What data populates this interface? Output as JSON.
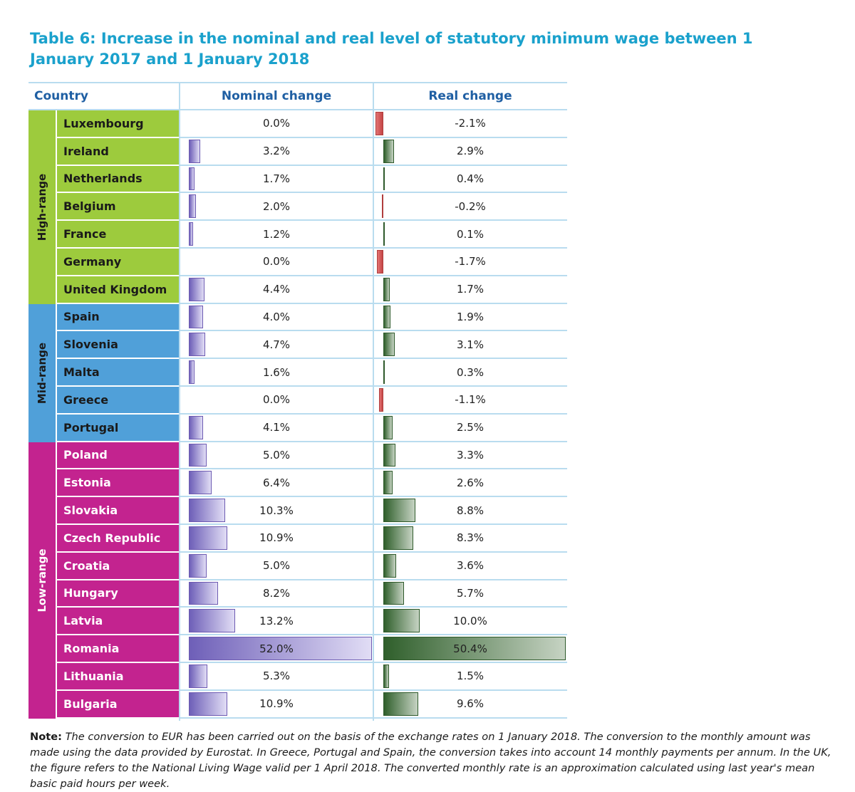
{
  "title": "Table 6: Increase in the nominal and real level of statutory minimum wage between 1 January 2017 and 1 January 2018",
  "columns": {
    "country": "Country",
    "nominal": "Nominal change",
    "real": "Real change"
  },
  "colors": {
    "high_range": "#9dcb3d",
    "mid_range": "#50a0d9",
    "low_range": "#c3238f",
    "nominal_bar": "#6e5fb8",
    "real_bar_positive": "#2f5f2b",
    "real_bar_negative": "#d9534f",
    "title": "#1aa1cc",
    "header": "#1f5fa3"
  },
  "groups": [
    {
      "label": "High-range",
      "color": "#9dcb3d",
      "text_color": "#1a1a1a",
      "rows": [
        {
          "country": "Luxembourg",
          "nominal": 0.0,
          "nominal_text": "0.0%",
          "real": -2.1,
          "real_text": "-2.1%"
        },
        {
          "country": "Ireland",
          "nominal": 3.2,
          "nominal_text": "3.2%",
          "real": 2.9,
          "real_text": "2.9%"
        },
        {
          "country": "Netherlands",
          "nominal": 1.7,
          "nominal_text": "1.7%",
          "real": 0.4,
          "real_text": "0.4%"
        },
        {
          "country": "Belgium",
          "nominal": 2.0,
          "nominal_text": "2.0%",
          "real": -0.2,
          "real_text": "-0.2%"
        },
        {
          "country": "France",
          "nominal": 1.2,
          "nominal_text": "1.2%",
          "real": 0.1,
          "real_text": "0.1%"
        },
        {
          "country": "Germany",
          "nominal": 0.0,
          "nominal_text": "0.0%",
          "real": -1.7,
          "real_text": "-1.7%"
        },
        {
          "country": "United Kingdom",
          "nominal": 4.4,
          "nominal_text": "4.4%",
          "real": 1.7,
          "real_text": "1.7%"
        }
      ]
    },
    {
      "label": "Mid-range",
      "color": "#50a0d9",
      "text_color": "#1a1a1a",
      "rows": [
        {
          "country": "Spain",
          "nominal": 4.0,
          "nominal_text": "4.0%",
          "real": 1.9,
          "real_text": "1.9%"
        },
        {
          "country": "Slovenia",
          "nominal": 4.7,
          "nominal_text": "4.7%",
          "real": 3.1,
          "real_text": "3.1%"
        },
        {
          "country": "Malta",
          "nominal": 1.6,
          "nominal_text": "1.6%",
          "real": 0.3,
          "real_text": "0.3%"
        },
        {
          "country": "Greece",
          "nominal": 0.0,
          "nominal_text": "0.0%",
          "real": -1.1,
          "real_text": "-1.1%"
        },
        {
          "country": "Portugal",
          "nominal": 4.1,
          "nominal_text": "4.1%",
          "real": 2.5,
          "real_text": "2.5%"
        }
      ]
    },
    {
      "label": "Low-range",
      "color": "#c3238f",
      "text_color": "#ffffff",
      "rows": [
        {
          "country": "Poland",
          "nominal": 5.0,
          "nominal_text": "5.0%",
          "real": 3.3,
          "real_text": "3.3%"
        },
        {
          "country": "Estonia",
          "nominal": 6.4,
          "nominal_text": "6.4%",
          "real": 2.6,
          "real_text": "2.6%"
        },
        {
          "country": "Slovakia",
          "nominal": 10.3,
          "nominal_text": "10.3%",
          "real": 8.8,
          "real_text": "8.8%"
        },
        {
          "country": "Czech Republic",
          "nominal": 10.9,
          "nominal_text": "10.9%",
          "real": 8.3,
          "real_text": "8.3%"
        },
        {
          "country": "Croatia",
          "nominal": 5.0,
          "nominal_text": "5.0%",
          "real": 3.6,
          "real_text": "3.6%"
        },
        {
          "country": "Hungary",
          "nominal": 8.2,
          "nominal_text": "8.2%",
          "real": 5.7,
          "real_text": "5.7%"
        },
        {
          "country": "Latvia",
          "nominal": 13.2,
          "nominal_text": "13.2%",
          "real": 10.0,
          "real_text": "10.0%"
        },
        {
          "country": "Romania",
          "nominal": 52.0,
          "nominal_text": "52.0%",
          "real": 50.4,
          "real_text": "50.4%"
        },
        {
          "country": "Lithuania",
          "nominal": 5.3,
          "nominal_text": "5.3%",
          "real": 1.5,
          "real_text": "1.5%"
        },
        {
          "country": "Bulgaria",
          "nominal": 10.9,
          "nominal_text": "10.9%",
          "real": 9.6,
          "real_text": "9.6%"
        }
      ]
    }
  ],
  "note": {
    "label": "Note:",
    "text": "The conversion to EUR has been carried out on the basis of the exchange rates on 1 January 2018. The conversion to the monthly amount was made using the data provided by Eurostat. In Greece, Portugal and Spain, the conversion takes into account 14 monthly payments per annum. In the UK, the figure refers to the National Living Wage valid per 1 April 2018. The converted monthly rate is an approximation calculated using last year's mean basic paid hours per week."
  }
}
